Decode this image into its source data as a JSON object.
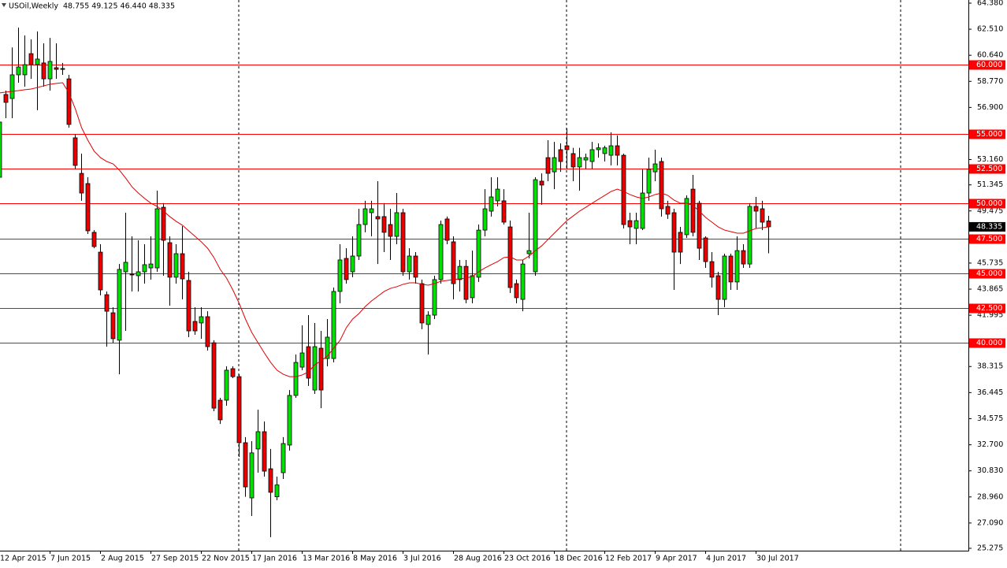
{
  "chart_data": {
    "type": "candlestick",
    "title": "USOil,Weekly",
    "ohlc_text": "48.755 49.125 46.440 48.335",
    "categories": [
      "12 Apr 2015",
      null,
      null,
      null,
      null,
      null,
      null,
      null,
      "7 Jun 2015",
      null,
      null,
      null,
      null,
      null,
      null,
      null,
      "2 Aug 2015",
      null,
      null,
      null,
      null,
      null,
      null,
      null,
      "27 Sep 2015",
      null,
      null,
      null,
      null,
      null,
      null,
      null,
      "22 Nov 2015",
      null,
      null,
      null,
      null,
      null,
      null,
      null,
      "17 Jan 2016",
      null,
      null,
      null,
      null,
      null,
      null,
      null,
      "13 Mar 2016",
      null,
      null,
      null,
      null,
      null,
      null,
      null,
      "8 May 2016",
      null,
      null,
      null,
      null,
      null,
      null,
      null,
      "3 Jul 2016",
      null,
      null,
      null,
      null,
      null,
      null,
      null,
      "28 Aug 2016",
      null,
      null,
      null,
      null,
      null,
      null,
      null,
      "23 Oct 2016",
      null,
      null,
      null,
      null,
      null,
      null,
      null,
      "18 Dec 2016",
      null,
      null,
      null,
      null,
      null,
      null,
      null,
      "12 Feb 2017",
      null,
      null,
      null,
      null,
      null,
      null,
      null,
      "9 Apr 2017",
      null,
      null,
      null,
      null,
      null,
      null,
      null,
      "4 Jun 2017",
      null,
      null,
      null,
      null,
      null,
      null,
      null,
      "30 Jul 2017",
      null,
      null
    ],
    "open": [
      51.89,
      57.83,
      57.54,
      59.24,
      59.24,
      60.76,
      59.97,
      60.09,
      58.95,
      59.75,
      59.69,
      58.95,
      54.72,
      52.17,
      51.44,
      47.94,
      46.52,
      43.47,
      42.17,
      40.2,
      45.11,
      44.94,
      44.83,
      45.11,
      45.39,
      45.39,
      49.74,
      47.2,
      44.72,
      46.41,
      44.49,
      41.55,
      41.44,
      41.89,
      40.02,
      35.9,
      35.9,
      38.16,
      37.59,
      32.85,
      28.89,
      32.4,
      33.64,
      30.98,
      28.97,
      30.7,
      32.68,
      36.24,
      38.27,
      39.74,
      36.63,
      39.63,
      38.89,
      38.89,
      43.7,
      46.07,
      45.11,
      46.24,
      48.5,
      49.35,
      49.07,
      49.07,
      48.5,
      47.65,
      49.35,
      45.11,
      46.24,
      44.26,
      41.33,
      42.0,
      44.55,
      48.9,
      47.26,
      44.55,
      45.5,
      43.25,
      44.72,
      48.1,
      49.46,
      50.2,
      50.2,
      48.33,
      44.26,
      43.13,
      46.41,
      45.11,
      51.61,
      53.3,
      52.28,
      53.87,
      54.15,
      53.59,
      52.63,
      53.13,
      53.02,
      53.87,
      53.59,
      53.47,
      54.15,
      53.47,
      48.78,
      48.22,
      48.22,
      50.76,
      52.28,
      53.02,
      49.8,
      49.35,
      47.94,
      47.77,
      51.04,
      50.03,
      47.54,
      45.84,
      44.83,
      43.13,
      46.24,
      44.38,
      46.63,
      45.67,
      49.8,
      49.63,
      48.755
    ],
    "high": [
      56.41,
      58.11,
      61.2,
      62.63,
      62.06,
      61.78,
      62.35,
      61.5,
      61.89,
      61.5,
      60.09,
      59.24,
      55.0,
      53.59,
      51.89,
      48.1,
      47.09,
      43.7,
      42.57,
      45.67,
      49.35,
      47.65,
      47.37,
      47.09,
      47.65,
      50.93,
      50.03,
      47.65,
      47.09,
      48.39,
      45.11,
      42.57,
      42.57,
      42.28,
      40.2,
      36.07,
      38.33,
      38.33,
      37.76,
      33.25,
      32.96,
      35.22,
      34.37,
      32.4,
      30.42,
      33.25,
      36.63,
      39.18,
      41.27,
      42.0,
      41.44,
      40.87,
      41.72,
      43.98,
      47.09,
      46.8,
      47.65,
      49.63,
      50.2,
      50.2,
      51.61,
      50.03,
      49.63,
      50.76,
      49.63,
      46.8,
      46.52,
      44.55,
      42.28,
      44.83,
      48.78,
      49.07,
      47.65,
      45.96,
      45.96,
      46.63,
      48.5,
      51.04,
      51.89,
      51.89,
      51.04,
      48.78,
      44.55,
      45.96,
      49.35,
      51.89,
      52.17,
      54.55,
      54.43,
      54.32,
      55.39,
      54.0,
      54.0,
      53.59,
      54.43,
      54.32,
      54.15,
      55.11,
      54.89,
      53.59,
      49.35,
      49.35,
      52.46,
      53.3,
      53.87,
      53.3,
      50.2,
      49.63,
      48.33,
      50.59,
      52.06,
      50.2,
      47.65,
      46.52,
      45.11,
      46.41,
      46.41,
      47.65,
      47.09,
      50.03,
      50.48,
      50.2,
      49.125
    ],
    "low": [
      51.72,
      56.13,
      56.13,
      58.67,
      58.39,
      58.95,
      56.7,
      58.39,
      58.11,
      58.95,
      59.24,
      55.45,
      52.46,
      50.2,
      47.82,
      46.8,
      43.42,
      39.74,
      40.02,
      37.76,
      40.87,
      43.7,
      43.7,
      44.26,
      44.55,
      45.11,
      44.83,
      42.68,
      44.26,
      43.13,
      40.42,
      40.59,
      40.31,
      39.46,
      35.11,
      34.2,
      35.5,
      37.48,
      31.83,
      28.97,
      27.59,
      30.7,
      30.42,
      26.07,
      28.72,
      30.25,
      32.28,
      36.07,
      38.05,
      36.92,
      36.35,
      35.33,
      38.33,
      38.61,
      42.85,
      44.26,
      44.72,
      45.96,
      47.94,
      47.65,
      45.67,
      46.52,
      45.96,
      47.09,
      44.83,
      44.55,
      44.26,
      40.99,
      39.18,
      41.72,
      44.26,
      47.09,
      43.13,
      43.7,
      42.85,
      42.85,
      44.38,
      47.65,
      49.07,
      49.8,
      48.5,
      43.59,
      42.85,
      42.28,
      46.07,
      44.83,
      49.91,
      51.61,
      51.04,
      52.28,
      52.46,
      51.61,
      50.93,
      52.46,
      52.46,
      53.3,
      53.02,
      52.74,
      52.74,
      48.22,
      47.09,
      47.09,
      48.1,
      50.2,
      51.61,
      49.07,
      48.9,
      43.81,
      45.67,
      47.54,
      47.65,
      45.96,
      45.39,
      43.98,
      42.0,
      42.57,
      43.81,
      43.81,
      45.39,
      45.39,
      48.22,
      48.1,
      46.44
    ],
    "close": [
      55.85,
      57.26,
      59.24,
      59.8,
      59.97,
      59.97,
      60.37,
      58.95,
      60.2,
      59.63,
      59.63,
      55.68,
      52.74,
      50.76,
      48.05,
      46.92,
      43.81,
      42.28,
      40.31,
      45.28,
      45.79,
      44.89,
      45.11,
      45.62,
      45.67,
      49.63,
      47.37,
      44.72,
      46.41,
      44.6,
      40.87,
      40.87,
      41.89,
      39.74,
      35.33,
      34.49,
      38.05,
      37.59,
      32.85,
      29.68,
      32.12,
      33.64,
      30.81,
      29.29,
      29.82,
      32.79,
      36.24,
      38.61,
      39.29,
      37.48,
      39.74,
      36.63,
      40.42,
      43.7,
      45.96,
      44.55,
      46.24,
      48.5,
      49.63,
      49.63,
      48.9,
      47.94,
      47.65,
      49.35,
      45.11,
      46.24,
      44.72,
      41.44,
      42.0,
      44.55,
      48.5,
      47.37,
      44.26,
      45.5,
      43.13,
      44.83,
      48.1,
      49.63,
      50.48,
      51.04,
      48.67,
      43.98,
      43.25,
      45.67,
      46.63,
      51.72,
      51.33,
      52.17,
      53.3,
      53.02,
      53.87,
      52.63,
      53.3,
      53.3,
      53.87,
      54.0,
      54.0,
      54.15,
      53.47,
      48.5,
      48.33,
      48.78,
      50.76,
      52.46,
      52.85,
      49.63,
      49.24,
      46.52,
      46.52,
      50.37,
      47.94,
      46.8,
      45.84,
      44.72,
      43.13,
      46.24,
      44.38,
      46.63,
      45.67,
      49.8,
      49.46,
      48.67,
      48.335
    ],
    "up_color": "#00e000",
    "down_color": "#e80000",
    "ma": {
      "color": "#e00000",
      "values": [
        57.94,
        58.0,
        58.05,
        58.11,
        58.17,
        58.22,
        58.33,
        58.45,
        58.56,
        58.62,
        58.67,
        57.94,
        56.81,
        55.45,
        54.55,
        53.76,
        53.3,
        53.02,
        52.85,
        52.4,
        51.83,
        51.21,
        50.76,
        50.37,
        50.03,
        49.8,
        49.46,
        49.07,
        48.73,
        48.45,
        48.05,
        47.65,
        47.26,
        46.8,
        46.13,
        45.28,
        44.66,
        43.81,
        42.85,
        41.72,
        40.76,
        40.02,
        39.29,
        38.61,
        38.05,
        37.76,
        37.59,
        37.59,
        37.71,
        37.93,
        38.44,
        38.72,
        39.06,
        39.63,
        40.19,
        41.1,
        41.72,
        42.11,
        42.62,
        43.02,
        43.36,
        43.7,
        43.92,
        44.04,
        44.21,
        44.32,
        44.32,
        44.21,
        44.15,
        44.26,
        44.43,
        44.49,
        44.55,
        44.6,
        44.66,
        44.77,
        45.11,
        45.39,
        45.62,
        45.84,
        46.13,
        46.18,
        45.96,
        45.96,
        46.24,
        46.63,
        46.97,
        47.43,
        47.88,
        48.33,
        48.78,
        49.12,
        49.46,
        49.74,
        50.03,
        50.31,
        50.59,
        50.87,
        51.04,
        50.87,
        50.65,
        50.48,
        50.37,
        50.48,
        50.65,
        50.76,
        50.59,
        50.25,
        50.03,
        50.03,
        49.86,
        49.46,
        49.01,
        48.67,
        48.33,
        48.1,
        47.99,
        47.88,
        47.88,
        48.05,
        48.22,
        48.27,
        48.33
      ]
    },
    "level_color": "#ff0000",
    "levels": [
      {
        "value": 60,
        "label": "60.000"
      },
      {
        "value": 55,
        "label": "55.000"
      },
      {
        "value": 52.5,
        "label": "52.500"
      },
      {
        "value": 50,
        "label": "50.000"
      },
      {
        "value": 47.5,
        "label": "47.500"
      },
      {
        "value": 45,
        "label": "45.000"
      },
      {
        "value": 42.5,
        "label": "42.500"
      },
      {
        "value": 40,
        "label": "40.000"
      }
    ],
    "last_price": {
      "value": 48.335,
      "label": "48.335"
    },
    "ylim": [
      25.275,
      64.38
    ],
    "yticks": [
      {
        "value": 64.38,
        "label": "64.380"
      },
      {
        "value": 62.51,
        "label": "62.510"
      },
      {
        "value": 60.64,
        "label": "60.640"
      },
      {
        "value": 58.77,
        "label": "58.770"
      },
      {
        "value": 56.9,
        "label": "56.900"
      },
      {
        "value": 53.16,
        "label": "53.160"
      },
      51.345,
      49.475,
      45.735,
      43.865,
      41.995,
      38.315,
      36.445,
      34.575,
      {
        "value": 32.7,
        "label": "32.700"
      },
      {
        "value": 30.83,
        "label": "30.830"
      },
      {
        "value": 28.96,
        "label": "28.960"
      },
      {
        "value": 27.09,
        "label": "27.090"
      },
      25.275
    ]
  }
}
